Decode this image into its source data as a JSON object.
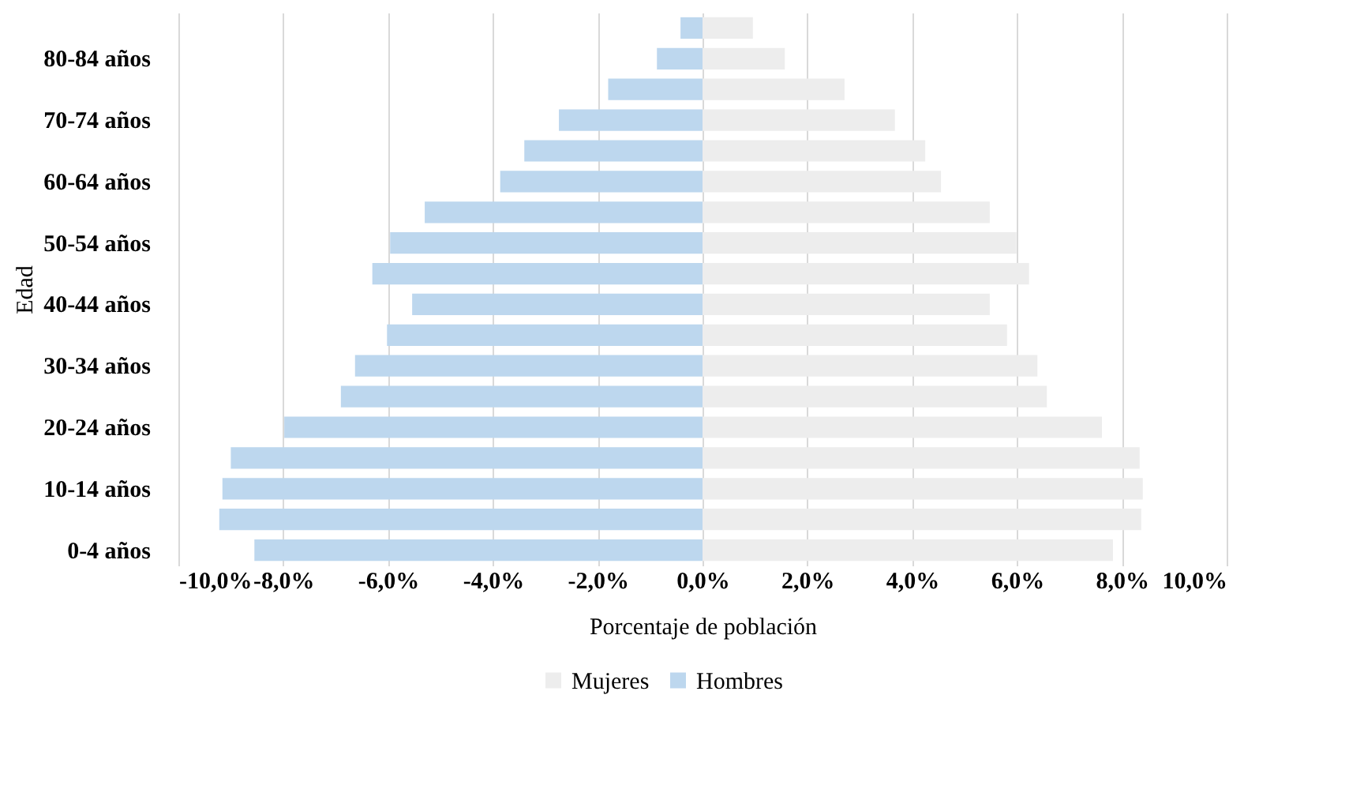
{
  "chart_data": {
    "type": "bar",
    "orientation": "horizontal",
    "xlabel": "Porcentaje de población",
    "ylabel": "Edad",
    "categories": [
      null,
      "80-84 años",
      null,
      "70-74 años",
      null,
      "60-64 años",
      null,
      "50-54 años",
      null,
      "40-44 años",
      null,
      "30-34 años",
      null,
      "20-24 años",
      null,
      "10-14 años",
      null,
      "0-4 años"
    ],
    "series": [
      {
        "name": "Mujeres",
        "color": "#ededed",
        "values": [
          0.96,
          1.57,
          2.71,
          3.67,
          4.25,
          4.55,
          5.48,
          5.99,
          6.23,
          5.48,
          5.81,
          6.39,
          6.57,
          7.62,
          8.34,
          8.4,
          8.37,
          7.83
        ]
      },
      {
        "name": "Hombres",
        "color": "#bdd7ee",
        "values": [
          -0.42,
          -0.87,
          -1.8,
          -2.74,
          -3.4,
          -3.86,
          -5.3,
          -5.96,
          -6.3,
          -5.54,
          -6.02,
          -6.63,
          -6.9,
          -7.98,
          -9.0,
          -9.16,
          -9.22,
          -8.55
        ]
      }
    ],
    "xlim": [
      -10,
      10
    ],
    "xticks": [
      {
        "value": -10,
        "label": "-10,0%"
      },
      {
        "value": -8,
        "label": "-8,0%"
      },
      {
        "value": -6,
        "label": "-6,0%"
      },
      {
        "value": -4,
        "label": "-4,0%"
      },
      {
        "value": -2,
        "label": "-2,0%"
      },
      {
        "value": 0,
        "label": "0,0%"
      },
      {
        "value": 2,
        "label": "2,0%"
      },
      {
        "value": 4,
        "label": "4,0%"
      },
      {
        "value": 6,
        "label": "6,0%"
      },
      {
        "value": 8,
        "label": "8,0%"
      },
      {
        "value": 10,
        "label": "10,0%"
      }
    ],
    "stacked": true,
    "grid": "x",
    "legend": "bottom"
  }
}
